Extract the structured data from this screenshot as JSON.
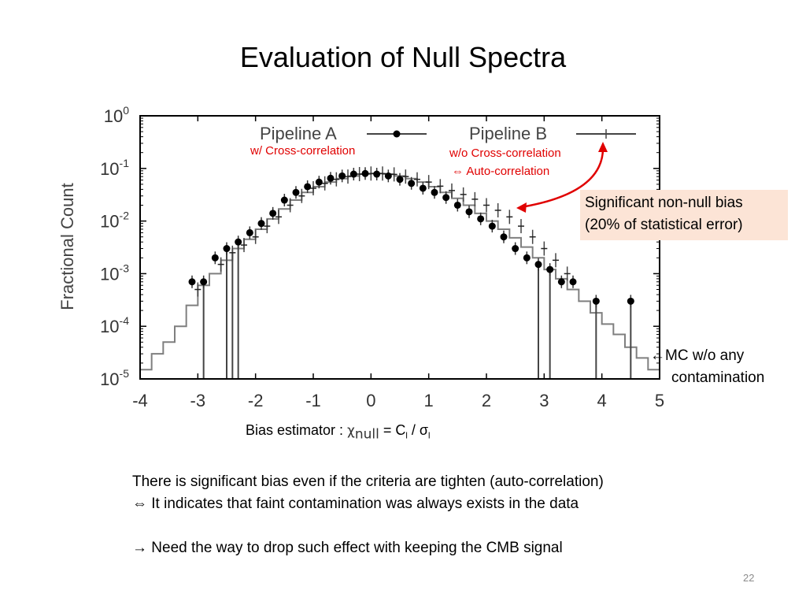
{
  "slide": {
    "title": "Evaluation of Null Spectra",
    "page_number": "22"
  },
  "annotations": {
    "cross_corr": "w/ Cross-correlation",
    "no_cross_corr": "w/o Cross-correlation",
    "auto_corr": "⇔ Auto-correlation",
    "callout_line1": "Significant non-null bias",
    "callout_line2": "(20% of statistical error)",
    "mc_arrow": "←",
    "mc_line1": "MC w/o any",
    "mc_line2": "contamination",
    "estimator_prefix": "Bias estimator : ",
    "estimator_chi": "χ",
    "estimator_chi_sub": "null",
    "estimator_eq": " = C",
    "estimator_l1": "l",
    "estimator_slash": " / σ",
    "estimator_l2": "l"
  },
  "body": {
    "line1": "There is significant bias even if the criteria are tighten (auto-correlation)",
    "line2": "⇔ It indicates that faint contamination was always exists in the data",
    "line3": "→ Need the way to drop such effect with keeping the CMB signal"
  },
  "colors": {
    "annotation_red": "#e00000",
    "callout_fill": "#fce4d6",
    "mc_histogram": "#7f7f7f",
    "frame": "#000000"
  },
  "chart_data": {
    "type": "scatter",
    "ylabel": "Fractional Count",
    "xlabel": "",
    "xlim": [
      -4,
      5
    ],
    "ylim": [
      1e-05,
      1
    ],
    "yscale": "log",
    "x_ticks": [
      "-4",
      "-3",
      "-2",
      "-1",
      "0",
      "1",
      "2",
      "3",
      "4",
      "5"
    ],
    "y_ticks": [
      {
        "base": "10",
        "exp": "0"
      },
      {
        "base": "10",
        "exp": "-1"
      },
      {
        "base": "10",
        "exp": "-2"
      },
      {
        "base": "10",
        "exp": "-3"
      },
      {
        "base": "10",
        "exp": "-4"
      },
      {
        "base": "10",
        "exp": "-5"
      }
    ],
    "legend_position": "top",
    "series": [
      {
        "name": "Pipeline A",
        "marker": "filled-circle",
        "x": [
          -3.1,
          -2.9,
          -2.7,
          -2.5,
          -2.3,
          -2.1,
          -1.9,
          -1.7,
          -1.5,
          -1.3,
          -1.1,
          -0.9,
          -0.7,
          -0.5,
          -0.3,
          -0.1,
          0.1,
          0.3,
          0.5,
          0.7,
          0.9,
          1.1,
          1.3,
          1.5,
          1.7,
          1.9,
          2.1,
          2.3,
          2.5,
          2.7,
          2.9,
          3.1,
          3.3,
          3.5,
          3.9,
          4.5
        ],
        "y": [
          0.0007,
          0.0007,
          0.002,
          0.003,
          0.004,
          0.006,
          0.009,
          0.014,
          0.025,
          0.035,
          0.045,
          0.055,
          0.065,
          0.072,
          0.078,
          0.08,
          0.078,
          0.072,
          0.062,
          0.052,
          0.042,
          0.035,
          0.028,
          0.02,
          0.015,
          0.011,
          0.008,
          0.005,
          0.003,
          0.002,
          0.0015,
          0.0012,
          0.0007,
          0.0007,
          0.0003,
          0.0003
        ]
      },
      {
        "name": "Pipeline B",
        "marker": "plus",
        "x": [
          -3.0,
          -2.6,
          -2.4,
          -2.2,
          -2.0,
          -1.8,
          -1.6,
          -1.4,
          -1.2,
          -1.0,
          -0.8,
          -0.6,
          -0.4,
          -0.2,
          0.0,
          0.2,
          0.4,
          0.6,
          0.8,
          1.0,
          1.2,
          1.4,
          1.6,
          1.8,
          2.0,
          2.2,
          2.4,
          2.6,
          2.8,
          3.0,
          3.2,
          3.4
        ],
        "y": [
          0.0005,
          0.0015,
          0.0025,
          0.0035,
          0.005,
          0.008,
          0.012,
          0.02,
          0.03,
          0.042,
          0.052,
          0.062,
          0.07,
          0.078,
          0.08,
          0.08,
          0.077,
          0.07,
          0.062,
          0.055,
          0.046,
          0.038,
          0.032,
          0.026,
          0.02,
          0.016,
          0.012,
          0.008,
          0.005,
          0.003,
          0.0018,
          0.001
        ]
      },
      {
        "name": "MC w/o any contamination",
        "type": "step",
        "x": [
          -4.0,
          -3.8,
          -3.6,
          -3.4,
          -3.2,
          -3.0,
          -2.8,
          -2.6,
          -2.4,
          -2.2,
          -2.0,
          -1.8,
          -1.6,
          -1.4,
          -1.2,
          -1.0,
          -0.8,
          -0.6,
          -0.4,
          -0.2,
          0.0,
          0.2,
          0.4,
          0.6,
          0.8,
          1.0,
          1.2,
          1.4,
          1.6,
          1.8,
          2.0,
          2.2,
          2.4,
          2.6,
          2.8,
          3.0,
          3.2,
          3.4,
          3.6,
          3.8,
          4.0,
          4.2,
          4.4,
          4.6,
          4.8
        ],
        "y": [
          1.5e-05,
          3e-05,
          5e-05,
          0.0001,
          0.00025,
          0.0006,
          0.001,
          0.0018,
          0.003,
          0.0045,
          0.007,
          0.011,
          0.017,
          0.025,
          0.035,
          0.045,
          0.055,
          0.064,
          0.072,
          0.078,
          0.08,
          0.078,
          0.072,
          0.064,
          0.055,
          0.045,
          0.035,
          0.027,
          0.02,
          0.014,
          0.01,
          0.007,
          0.0048,
          0.0032,
          0.002,
          0.0012,
          0.0008,
          0.0005,
          0.0003,
          0.00018,
          0.00011,
          7e-05,
          4e-05,
          2.5e-05,
          1.5e-05
        ]
      }
    ],
    "error_bars": [
      {
        "series": "Pipeline A",
        "x": -2.9,
        "y_low": 1e-05,
        "y_high": 0.0007
      },
      {
        "series": "Pipeline A",
        "x": -2.5,
        "y_low": 1e-05,
        "y_high": 0.003
      },
      {
        "series": "Pipeline A",
        "x": -2.3,
        "y_low": 1e-05,
        "y_high": 0.004
      },
      {
        "series": "Pipeline B",
        "x": -2.4,
        "y_low": 1e-05,
        "y_high": 0.0025
      },
      {
        "series": "Pipeline A",
        "x": 2.9,
        "y_low": 1e-05,
        "y_high": 0.0015
      },
      {
        "series": "Pipeline A",
        "x": 3.1,
        "y_low": 1e-05,
        "y_high": 0.0012
      },
      {
        "series": "Pipeline A",
        "x": 3.9,
        "y_low": 1e-05,
        "y_high": 0.0003
      },
      {
        "series": "Pipeline A",
        "x": 4.5,
        "y_low": 1e-05,
        "y_high": 0.0003
      }
    ]
  }
}
